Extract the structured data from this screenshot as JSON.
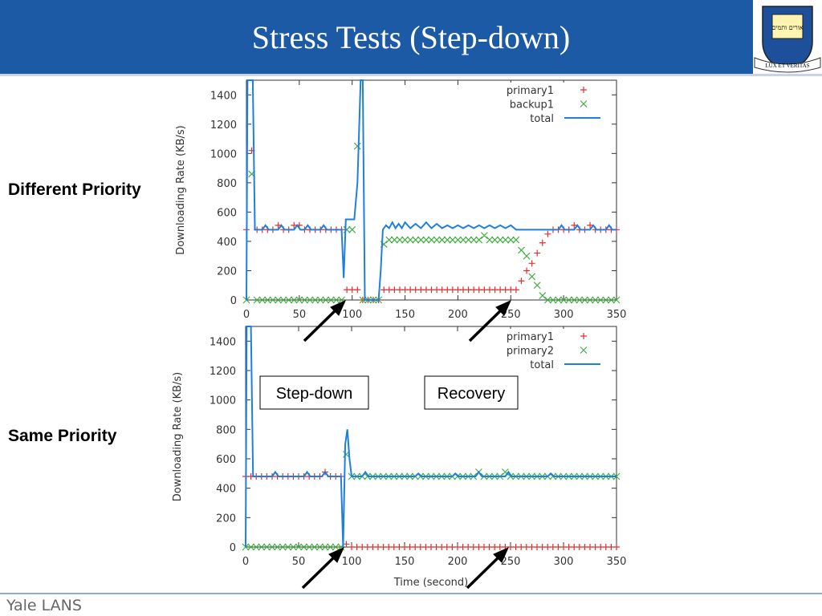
{
  "slide": {
    "title": "Stress Tests (Step-down)",
    "labels": [
      "Different Priority",
      "Same Priority"
    ],
    "footer": "Yale LANS",
    "logo": {
      "hebrew": "אורים ותמים",
      "motto": "LUX ET VERITAS"
    }
  },
  "chart_data": [
    {
      "type": "line",
      "ylabel": "Downloading Rate (KB/s)",
      "xlim": [
        0,
        350
      ],
      "ylim": [
        0,
        1500
      ],
      "xticks": [
        0,
        50,
        100,
        150,
        200,
        250,
        300,
        350
      ],
      "yticks": [
        0,
        200,
        400,
        600,
        800,
        1000,
        1200,
        1400
      ],
      "legend": "upper right",
      "series": [
        {
          "name": "primary1",
          "color": "#e03030",
          "marker": "+",
          "x": [
            0,
            5,
            10,
            15,
            20,
            25,
            30,
            35,
            40,
            45,
            50,
            55,
            60,
            65,
            70,
            75,
            80,
            85,
            90,
            95,
            100,
            105,
            110,
            115,
            120,
            125,
            130,
            135,
            140,
            145,
            150,
            155,
            160,
            165,
            170,
            175,
            180,
            185,
            190,
            195,
            200,
            205,
            210,
            215,
            220,
            225,
            230,
            235,
            240,
            245,
            250,
            255,
            260,
            265,
            270,
            275,
            280,
            285,
            290,
            295,
            300,
            305,
            310,
            315,
            320,
            325,
            330,
            335,
            340,
            345,
            350
          ],
          "values": [
            480,
            1020,
            480,
            480,
            480,
            480,
            510,
            480,
            480,
            510,
            510,
            480,
            480,
            480,
            480,
            480,
            480,
            480,
            480,
            70,
            70,
            70,
            0,
            0,
            0,
            0,
            70,
            70,
            70,
            70,
            70,
            70,
            70,
            70,
            70,
            70,
            70,
            70,
            70,
            70,
            70,
            70,
            70,
            70,
            70,
            70,
            70,
            70,
            70,
            70,
            70,
            70,
            130,
            200,
            250,
            320,
            390,
            450,
            480,
            480,
            480,
            480,
            510,
            480,
            480,
            510,
            480,
            480,
            480,
            480,
            480
          ]
        },
        {
          "name": "backup1",
          "color": "#40b040",
          "marker": "x",
          "x": [
            0,
            5,
            10,
            15,
            20,
            25,
            30,
            35,
            40,
            45,
            50,
            55,
            60,
            65,
            70,
            75,
            80,
            85,
            90,
            95,
            100,
            105,
            110,
            115,
            120,
            125,
            130,
            135,
            140,
            145,
            150,
            155,
            160,
            165,
            170,
            175,
            180,
            185,
            190,
            195,
            200,
            205,
            210,
            215,
            220,
            225,
            230,
            235,
            240,
            245,
            250,
            255,
            260,
            265,
            270,
            275,
            280,
            285,
            290,
            295,
            300,
            305,
            310,
            315,
            320,
            325,
            330,
            335,
            340,
            345,
            350
          ],
          "values": [
            0,
            860,
            0,
            0,
            0,
            0,
            0,
            0,
            0,
            0,
            0,
            0,
            0,
            0,
            0,
            0,
            0,
            0,
            0,
            480,
            480,
            1050,
            0,
            0,
            0,
            0,
            380,
            410,
            410,
            410,
            410,
            410,
            410,
            410,
            410,
            410,
            410,
            410,
            410,
            410,
            410,
            410,
            410,
            410,
            410,
            440,
            410,
            410,
            410,
            410,
            410,
            410,
            340,
            300,
            160,
            100,
            30,
            0,
            0,
            0,
            0,
            0,
            0,
            0,
            0,
            0,
            0,
            0,
            0,
            0,
            0
          ]
        },
        {
          "name": "total",
          "color": "#1f7fe0",
          "x": [
            0,
            1,
            6,
            8,
            15,
            18,
            21,
            30,
            33,
            36,
            45,
            48,
            51,
            55,
            58,
            61,
            70,
            73,
            76,
            90,
            92,
            94,
            102,
            105,
            108,
            110,
            112,
            125,
            127,
            129,
            132,
            135,
            138,
            141,
            144,
            147,
            150,
            155,
            160,
            165,
            170,
            175,
            180,
            185,
            190,
            195,
            200,
            205,
            210,
            215,
            220,
            225,
            230,
            235,
            240,
            245,
            250,
            255,
            260,
            270,
            280,
            290,
            295,
            298,
            301,
            310,
            313,
            316,
            325,
            328,
            331,
            340,
            343,
            346,
            350
          ],
          "values": [
            0,
            1500,
            1500,
            480,
            480,
            510,
            480,
            480,
            510,
            480,
            480,
            510,
            480,
            480,
            510,
            480,
            480,
            510,
            480,
            480,
            150,
            550,
            550,
            800,
            1500,
            1500,
            0,
            0,
            200,
            480,
            510,
            490,
            530,
            490,
            520,
            490,
            530,
            490,
            520,
            490,
            530,
            490,
            520,
            490,
            510,
            490,
            510,
            490,
            510,
            490,
            510,
            490,
            510,
            490,
            510,
            490,
            510,
            480,
            480,
            480,
            480,
            480,
            480,
            510,
            480,
            480,
            510,
            480,
            480,
            510,
            480,
            480,
            510,
            480,
            480
          ]
        }
      ]
    },
    {
      "type": "line",
      "xlabel": "Time (second)",
      "ylabel": "Downloading Rate (KB/s)",
      "xlim": [
        0,
        350
      ],
      "ylim": [
        0,
        1500
      ],
      "xticks": [
        0,
        50,
        100,
        150,
        200,
        250,
        300,
        350
      ],
      "yticks": [
        0,
        200,
        400,
        600,
        800,
        1000,
        1200,
        1400
      ],
      "legend": "upper right",
      "annotations": [
        "Step-down",
        "Recovery"
      ],
      "series": [
        {
          "name": "primary1",
          "color": "#e03030",
          "marker": "+",
          "x": [
            0,
            5,
            10,
            15,
            20,
            25,
            30,
            35,
            40,
            45,
            50,
            55,
            60,
            65,
            70,
            75,
            80,
            85,
            90,
            95,
            100,
            105,
            110,
            115,
            120,
            125,
            130,
            135,
            140,
            145,
            150,
            155,
            160,
            165,
            170,
            175,
            180,
            185,
            190,
            195,
            200,
            205,
            210,
            215,
            220,
            225,
            230,
            235,
            240,
            245,
            250,
            255,
            260,
            265,
            270,
            275,
            280,
            285,
            290,
            295,
            300,
            305,
            310,
            315,
            320,
            325,
            330,
            335,
            340,
            345,
            350
          ],
          "values": [
            480,
            480,
            480,
            480,
            480,
            480,
            480,
            480,
            480,
            480,
            480,
            480,
            480,
            480,
            480,
            510,
            480,
            480,
            480,
            20,
            0,
            0,
            0,
            0,
            0,
            0,
            0,
            0,
            0,
            0,
            0,
            0,
            0,
            0,
            0,
            0,
            0,
            0,
            0,
            0,
            0,
            0,
            0,
            0,
            0,
            0,
            0,
            0,
            0,
            0,
            0,
            0,
            0,
            0,
            0,
            0,
            0,
            0,
            0,
            0,
            0,
            0,
            0,
            0,
            0,
            0,
            0,
            0,
            0,
            0,
            0
          ]
        },
        {
          "name": "primary2",
          "color": "#40b040",
          "marker": "x",
          "x": [
            0,
            5,
            10,
            15,
            20,
            25,
            30,
            35,
            40,
            45,
            50,
            55,
            60,
            65,
            70,
            75,
            80,
            85,
            90,
            95,
            100,
            105,
            110,
            115,
            120,
            125,
            130,
            135,
            140,
            145,
            150,
            155,
            160,
            165,
            170,
            175,
            180,
            185,
            190,
            195,
            200,
            205,
            210,
            215,
            220,
            225,
            230,
            235,
            240,
            245,
            250,
            255,
            260,
            265,
            270,
            275,
            280,
            285,
            290,
            295,
            300,
            305,
            310,
            315,
            320,
            325,
            330,
            335,
            340,
            345,
            350
          ],
          "values": [
            0,
            0,
            0,
            0,
            0,
            0,
            0,
            0,
            0,
            0,
            0,
            0,
            0,
            0,
            0,
            0,
            0,
            0,
            0,
            630,
            480,
            480,
            480,
            480,
            480,
            480,
            480,
            480,
            480,
            480,
            480,
            480,
            480,
            480,
            480,
            480,
            480,
            480,
            480,
            480,
            480,
            480,
            480,
            480,
            510,
            480,
            480,
            480,
            480,
            510,
            480,
            480,
            480,
            480,
            480,
            480,
            480,
            480,
            480,
            480,
            480,
            480,
            480,
            480,
            480,
            480,
            480,
            480,
            480,
            480,
            480
          ]
        },
        {
          "name": "total",
          "color": "#1f7fe0",
          "x": [
            0,
            1,
            5,
            7,
            25,
            28,
            31,
            55,
            58,
            61,
            72,
            75,
            78,
            90,
            92,
            94,
            96,
            98,
            100,
            110,
            113,
            116,
            160,
            163,
            166,
            195,
            198,
            201,
            217,
            220,
            223,
            245,
            248,
            251,
            285,
            288,
            291,
            350
          ],
          "values": [
            0,
            1500,
            1500,
            480,
            480,
            510,
            480,
            480,
            510,
            480,
            480,
            510,
            480,
            480,
            0,
            700,
            800,
            600,
            480,
            480,
            510,
            480,
            480,
            500,
            480,
            480,
            500,
            480,
            480,
            510,
            480,
            480,
            510,
            480,
            480,
            500,
            480,
            480
          ]
        }
      ]
    }
  ]
}
